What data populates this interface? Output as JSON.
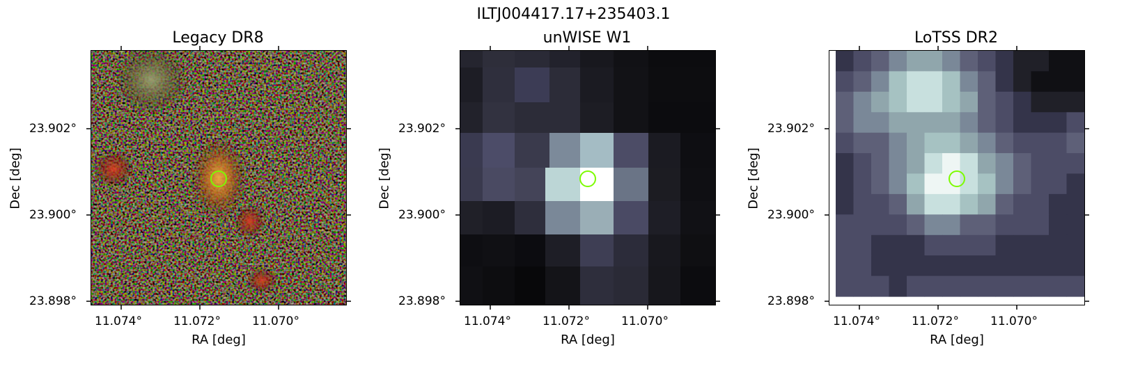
{
  "figure": {
    "title": "ILTJ004417.17+235403.1"
  },
  "panels": [
    {
      "title": "Legacy DR8",
      "xlabel": "RA [deg]",
      "ylabel": "Dec [deg]",
      "xticks": [
        "11.074°",
        "11.072°",
        "11.070°"
      ],
      "yticks": [
        "23.902°",
        "23.900°",
        "23.898°"
      ]
    },
    {
      "title": "unWISE W1",
      "xlabel": "RA [deg]",
      "ylabel": "Dec [deg]",
      "xticks": [
        "11.074°",
        "11.072°",
        "11.070°"
      ],
      "yticks": [
        "23.902°",
        "23.900°",
        "23.898°"
      ]
    },
    {
      "title": "LoTSS DR2",
      "xlabel": "RA [deg]",
      "ylabel": "Dec [deg]",
      "xticks": [
        "11.074°",
        "11.072°",
        "11.070°"
      ],
      "yticks": [
        "23.902°",
        "23.900°",
        "23.898°"
      ]
    }
  ],
  "colors": {
    "marker": "#7cfc00",
    "axes": "#000000"
  }
}
